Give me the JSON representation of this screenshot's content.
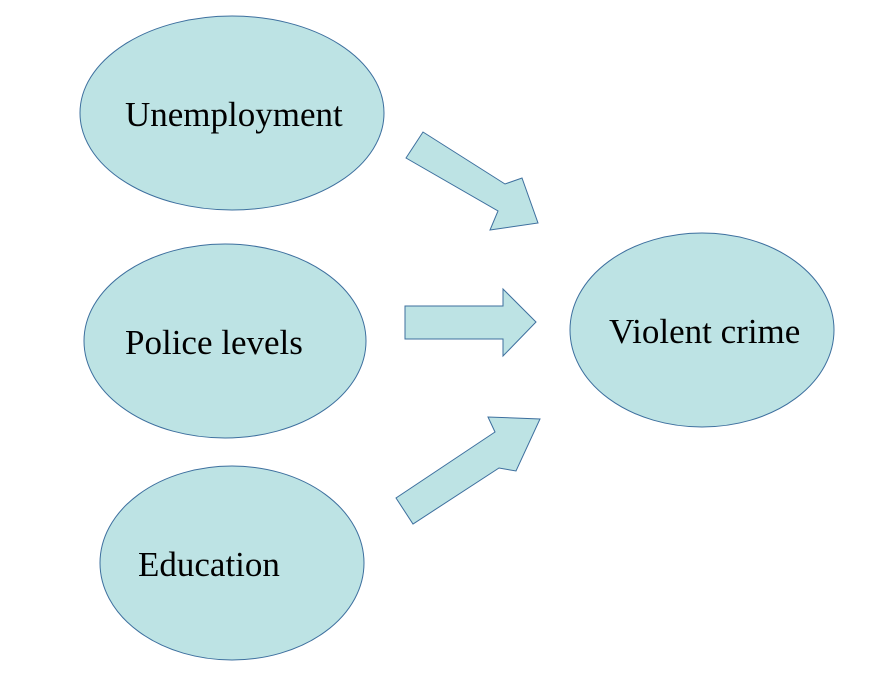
{
  "diagram": {
    "nodes": {
      "unemployment": "Unemployment",
      "police_levels": "Police levels",
      "education": "Education",
      "violent_crime": "Violent crime"
    },
    "edges": [
      {
        "from": "unemployment",
        "to": "violent_crime"
      },
      {
        "from": "police_levels",
        "to": "violent_crime"
      },
      {
        "from": "education",
        "to": "violent_crime"
      }
    ],
    "colors": {
      "node_fill": "#bde3e4",
      "node_stroke": "#3d6f9e",
      "arrow_fill": "#bde3e4",
      "arrow_stroke": "#3d6f9e",
      "text": "#000000"
    }
  }
}
